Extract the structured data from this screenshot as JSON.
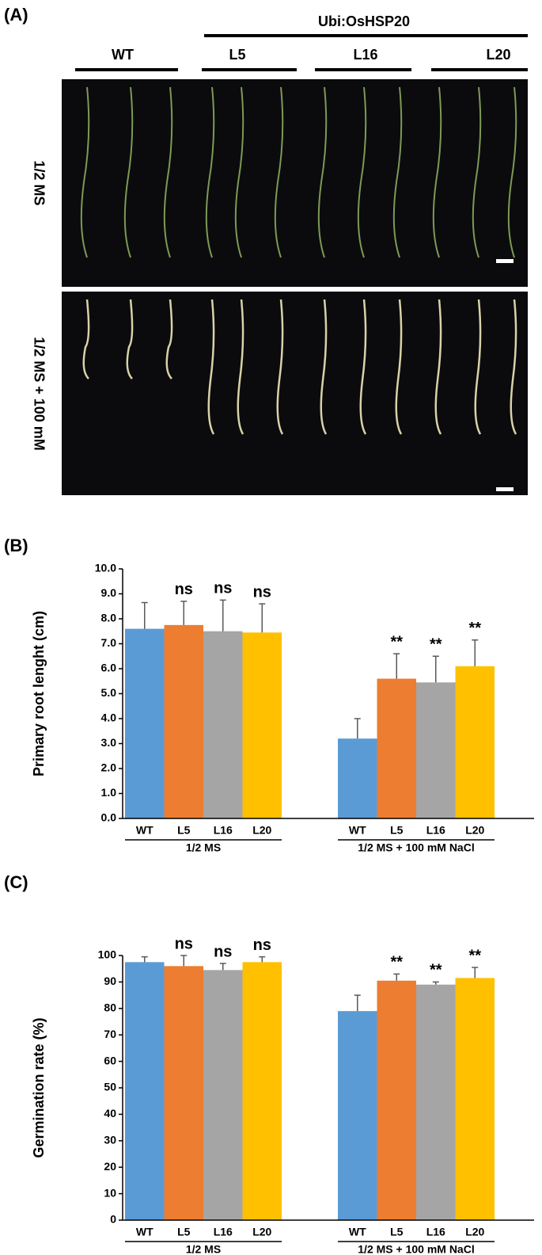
{
  "panel_a": {
    "label": "(A)",
    "construct": "Ubi:OsHSP20",
    "lines": [
      "WT",
      "L5",
      "L16",
      "L20"
    ],
    "rows": [
      "1/2 MS",
      "1/2 MS + 100 mM"
    ]
  },
  "chart_data": [
    {
      "type": "bar",
      "panel_label": "(B)",
      "y_label": "Primary root lenght (cm)",
      "categories": [
        "1/2 MS",
        "1/2 MS + 100 mM NaCl"
      ],
      "series": [
        {
          "name": "WT",
          "color": "#5b9bd5",
          "values": [
            7.6,
            3.2
          ],
          "errors": [
            1.05,
            0.8
          ],
          "annotations": [
            null,
            null
          ]
        },
        {
          "name": "L5",
          "color": "#ed7d31",
          "values": [
            7.75,
            5.6
          ],
          "errors": [
            0.95,
            1.0
          ],
          "annotations": [
            "ns",
            "**"
          ]
        },
        {
          "name": "L16",
          "color": "#a5a5a5",
          "values": [
            7.5,
            5.45
          ],
          "errors": [
            1.25,
            1.05
          ],
          "annotations": [
            "ns",
            "**"
          ]
        },
        {
          "name": "L20",
          "color": "#ffc000",
          "values": [
            7.45,
            6.1
          ],
          "errors": [
            1.15,
            1.05
          ],
          "annotations": [
            "ns",
            "**"
          ]
        }
      ],
      "ylim": [
        0,
        10
      ],
      "yticks": [
        {
          "value": 0,
          "label": "0.0"
        },
        {
          "value": 1,
          "label": "1.0"
        },
        {
          "value": 2,
          "label": "2.0"
        },
        {
          "value": 3,
          "label": "3.0"
        },
        {
          "value": 4,
          "label": "4.0"
        },
        {
          "value": 5,
          "label": "5.0"
        },
        {
          "value": 6,
          "label": "6.0"
        },
        {
          "value": 7,
          "label": "7.0"
        },
        {
          "value": 8,
          "label": "8.0"
        },
        {
          "value": 9,
          "label": "9.0"
        },
        {
          "value": 10,
          "label": "10.0"
        }
      ]
    },
    {
      "type": "bar",
      "panel_label": "(C)",
      "y_label": "Germination rate (%)",
      "categories": [
        "1/2 MS",
        "1/2 MS + 100 mM NaCl"
      ],
      "series": [
        {
          "name": "WT",
          "color": "#5b9bd5",
          "values": [
            97.5,
            79
          ],
          "errors": [
            2,
            6
          ],
          "annotations": [
            null,
            null
          ]
        },
        {
          "name": "L5",
          "color": "#ed7d31",
          "values": [
            96,
            90.5
          ],
          "errors": [
            4,
            2.5
          ],
          "annotations": [
            "ns",
            "**"
          ]
        },
        {
          "name": "L16",
          "color": "#a5a5a5",
          "values": [
            94.5,
            89
          ],
          "errors": [
            2.5,
            1
          ],
          "annotations": [
            "ns",
            "**"
          ]
        },
        {
          "name": "L20",
          "color": "#ffc000",
          "values": [
            97.5,
            91.5
          ],
          "errors": [
            2,
            4
          ],
          "annotations": [
            "ns",
            "**"
          ]
        }
      ],
      "ylim": [
        0,
        100
      ],
      "yticks": [
        0,
        10,
        20,
        30,
        40,
        50,
        60,
        70,
        80,
        90,
        100
      ]
    }
  ]
}
